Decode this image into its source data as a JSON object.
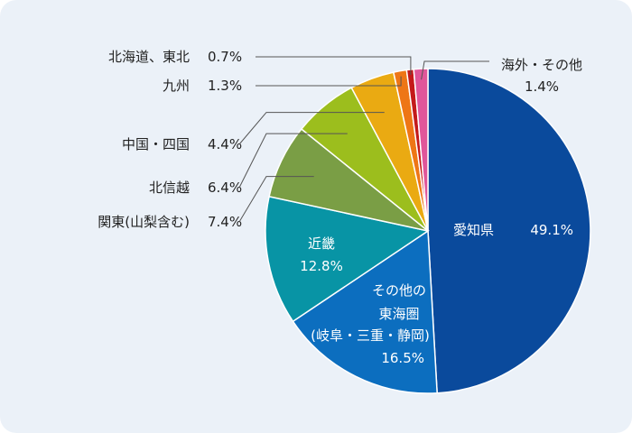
{
  "chart_data": {
    "type": "pie",
    "title": "",
    "categories": [
      "愛知県",
      "その他の東海圏(岐阜・三重・静岡)",
      "近畿",
      "関東(山梨含む)",
      "北信越",
      "中国・四国",
      "九州",
      "北海道、東北",
      "海外・その他"
    ],
    "values": [
      49.1,
      16.5,
      12.8,
      7.4,
      6.4,
      4.4,
      1.3,
      0.7,
      1.4
    ],
    "slices": [
      {
        "name": "愛知県",
        "value": 49.1,
        "label": "愛知県",
        "pct": "49.1%",
        "color": "#0a4a9c"
      },
      {
        "name": "その他の東海圏(岐阜・三重・静岡)",
        "value": 16.5,
        "label_lines": [
          "その他の",
          "東海圏",
          "(岐阜・三重・静岡)"
        ],
        "pct": "16.5%",
        "color": "#0c6ebf"
      },
      {
        "name": "近畿",
        "value": 12.8,
        "label": "近畿",
        "pct": "12.8%",
        "color": "#0894a5"
      },
      {
        "name": "関東(山梨含む)",
        "value": 7.4,
        "label": "関東(山梨含む)",
        "pct": "7.4%",
        "color": "#7a9e45"
      },
      {
        "name": "北信越",
        "value": 6.4,
        "label": "北信越",
        "pct": "6.4%",
        "color": "#9cbe1d"
      },
      {
        "name": "中国・四国",
        "value": 4.4,
        "label": "中国・四国",
        "pct": "4.4%",
        "color": "#eaaa12"
      },
      {
        "name": "九州",
        "value": 1.3,
        "label": "九州",
        "pct": "1.3%",
        "color": "#ee7616"
      },
      {
        "name": "北海道、東北",
        "value": 0.7,
        "label": "北海道、東北",
        "pct": "0.7%",
        "color": "#c41a1a"
      },
      {
        "name": "海外・その他",
        "value": 1.4,
        "label": "海外・その他",
        "pct": "1.4%",
        "color": "#e0569a"
      }
    ],
    "legend": "none"
  }
}
